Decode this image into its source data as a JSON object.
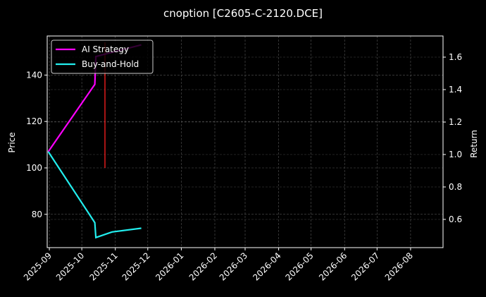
{
  "chart_data": {
    "type": "line",
    "title": "cnoption [C2605-C-2120.DCE]",
    "xlabel": "",
    "ylabel_left": "Price",
    "ylabel_right": "Return",
    "x_ticks": [
      "2025-09",
      "2025-10",
      "2025-11",
      "2025-12",
      "2026-01",
      "2026-02",
      "2026-03",
      "2026-04",
      "2026-05",
      "2026-06",
      "2026-07",
      "2026-08"
    ],
    "y_ticks_left": [
      80,
      100,
      120,
      140
    ],
    "y_ticks_right": [
      0.6,
      0.8,
      1.0,
      1.2,
      1.4,
      1.6
    ],
    "ylim_left": [
      66,
      157
    ],
    "ylim_right": [
      0.43,
      1.72
    ],
    "grid": true,
    "legend_position": "upper left",
    "series": [
      {
        "name": "AI Strategy",
        "color": "#ff00ff",
        "axis": "price",
        "x": [
          "2025-08-31",
          "2025-10-13",
          "2025-10-14",
          "2025-11-25"
        ],
        "values": [
          107,
          136,
          148,
          153
        ]
      },
      {
        "name": "Buy-and-Hold",
        "color": "#22eeee",
        "axis": "price",
        "x": [
          "2025-08-31",
          "2025-10-13",
          "2025-10-14",
          "2025-10-29",
          "2025-11-25"
        ],
        "values": [
          107,
          76.4,
          70,
          72.4,
          74
        ]
      }
    ],
    "annotations": [
      {
        "type": "vertical-line",
        "color": "#ff2020",
        "x": "2025-10-21",
        "y_from": 100,
        "y_to": 154
      }
    ]
  }
}
